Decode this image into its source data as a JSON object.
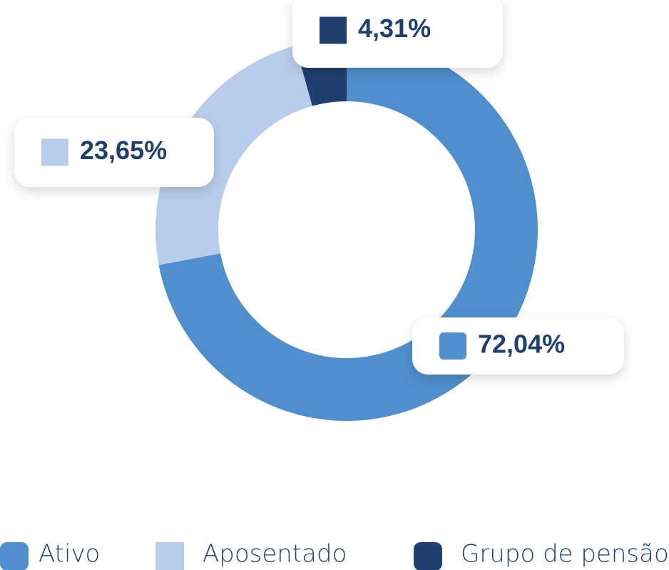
{
  "chart_data": {
    "type": "pie",
    "donut": true,
    "categories": [
      "Ativo",
      "Aposentado",
      "Grupo de pensão"
    ],
    "values": [
      72.04,
      23.65,
      4.31
    ],
    "value_labels": [
      "72,04%",
      "23,65%",
      "4,31%"
    ],
    "colors": [
      "#4f8fcd",
      "#b8cdec",
      "#1f3f6e"
    ]
  }
}
